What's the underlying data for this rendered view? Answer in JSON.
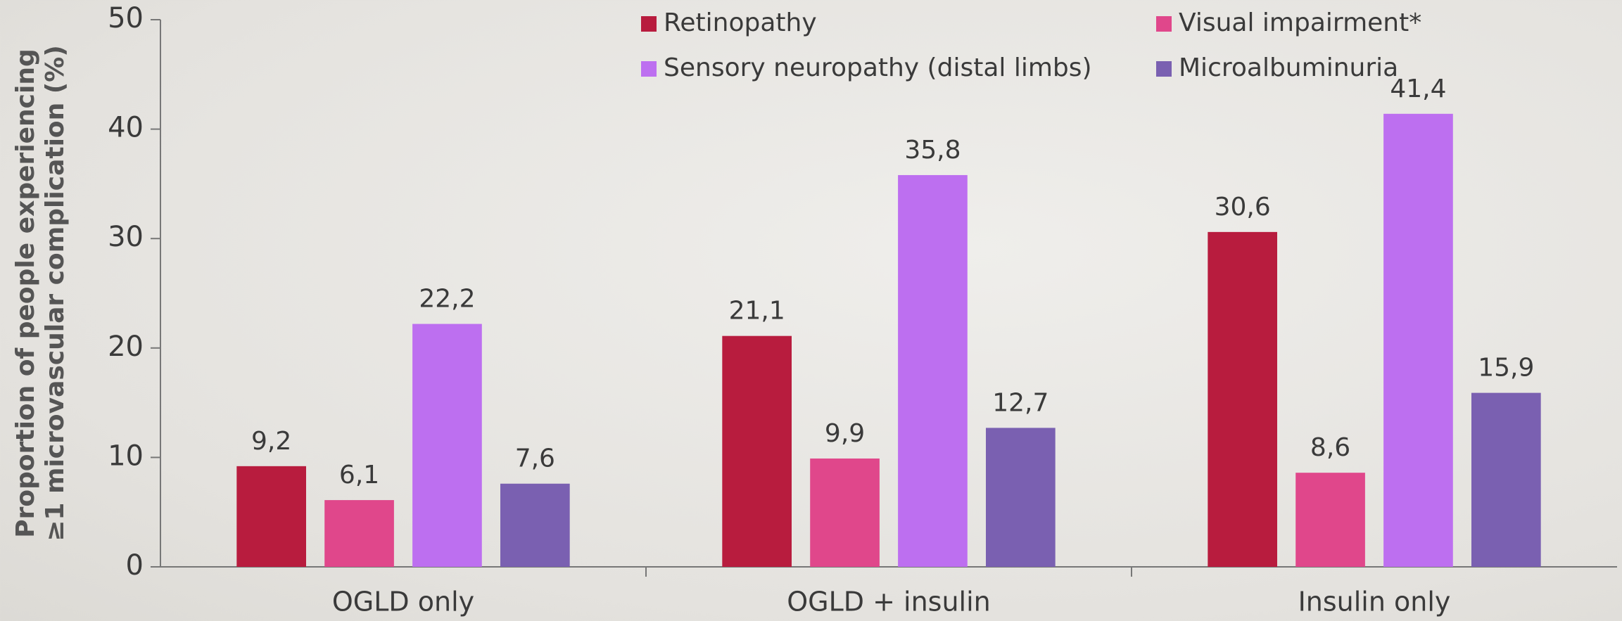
{
  "chart_data": {
    "type": "bar",
    "ylabel": [
      "Proportion of people experiencing",
      "≥1 microvascular complication (%)"
    ],
    "categories": [
      "OGLD only",
      "OGLD + insulin",
      "Insulin only"
    ],
    "series": [
      {
        "name": "Retinopathy",
        "color": "#b81c3e",
        "values": [
          9.2,
          21.1,
          30.6
        ],
        "value_labels": [
          "9,2",
          "21,1",
          "30,6"
        ]
      },
      {
        "name": "Visual impairment*",
        "color": "#e0478b",
        "values": [
          6.1,
          9.9,
          8.6
        ],
        "value_labels": [
          "6,1",
          "9,9",
          "8,6"
        ]
      },
      {
        "name": "Sensory neuropathy (distal limbs)",
        "color": "#bd6ff0",
        "values": [
          22.2,
          35.8,
          41.4
        ],
        "value_labels": [
          "22,2",
          "35,8",
          "41,4"
        ]
      },
      {
        "name": "Microalbuminuria",
        "color": "#7a60b1",
        "values": [
          7.6,
          12.7,
          15.9
        ],
        "value_labels": [
          "7,6",
          "12,7",
          "15,9"
        ]
      }
    ],
    "ylim": [
      0,
      50
    ],
    "yticks": [
      0,
      10,
      20,
      30,
      40,
      50
    ],
    "legend": "top"
  }
}
